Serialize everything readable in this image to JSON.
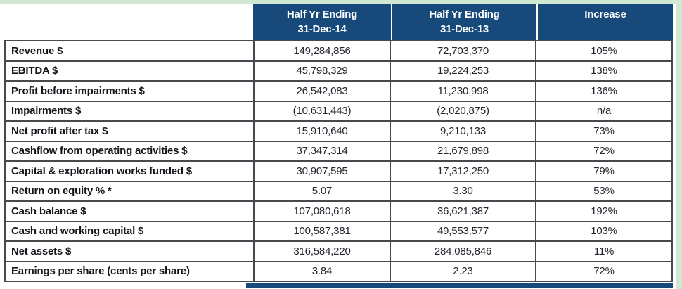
{
  "colors": {
    "header_bg": "#17497B",
    "accent_bar": "#17497B",
    "page_frame_green": "#D2E8D2",
    "grid_border": "#46494E",
    "label_text": "#14161B",
    "value_text": "#23262E"
  },
  "table": {
    "headers": [
      {
        "line1": "Half Yr Ending",
        "line2": "31-Dec-14"
      },
      {
        "line1": "Half Yr Ending",
        "line2": "31-Dec-13"
      },
      {
        "line1": "Increase",
        "line2": ""
      }
    ],
    "rows": [
      {
        "label": "Revenue $",
        "hy2014": "149,284,856",
        "hy2013": "72,703,370",
        "increase": "105%"
      },
      {
        "label": "EBITDA $",
        "hy2014": "45,798,329",
        "hy2013": "19,224,253",
        "increase": "138%"
      },
      {
        "label": "Profit before impairments $",
        "hy2014": "26,542,083",
        "hy2013": "11,230,998",
        "increase": "136%"
      },
      {
        "label": "Impairments $",
        "hy2014": "(10,631,443)",
        "hy2013": "(2,020,875)",
        "increase": "n/a"
      },
      {
        "label": "Net profit after tax $",
        "hy2014": "15,910,640",
        "hy2013": "9,210,133",
        "increase": "73%"
      },
      {
        "label": "Cashflow from operating activities $",
        "hy2014": "37,347,314",
        "hy2013": "21,679,898",
        "increase": "72%"
      },
      {
        "label": "Capital & exploration works funded $",
        "hy2014": "30,907,595",
        "hy2013": "17,312,250",
        "increase": "79%"
      },
      {
        "label": "Return on equity % *",
        "hy2014": "5.07",
        "hy2013": "3.30",
        "increase": "53%"
      },
      {
        "label": "Cash balance $",
        "hy2014": "107,080,618",
        "hy2013": "36,621,387",
        "increase": "192%"
      },
      {
        "label": "Cash and working capital $",
        "hy2014": "100,587,381",
        "hy2013": "49,553,577",
        "increase": "103%"
      },
      {
        "label": "Net assets $",
        "hy2014": "316,584,220",
        "hy2013": "284,085,846",
        "increase": "11%"
      },
      {
        "label": "Earnings per share (cents per share)",
        "hy2014": "3.84",
        "hy2013": "2.23",
        "increase": "72%"
      }
    ]
  }
}
